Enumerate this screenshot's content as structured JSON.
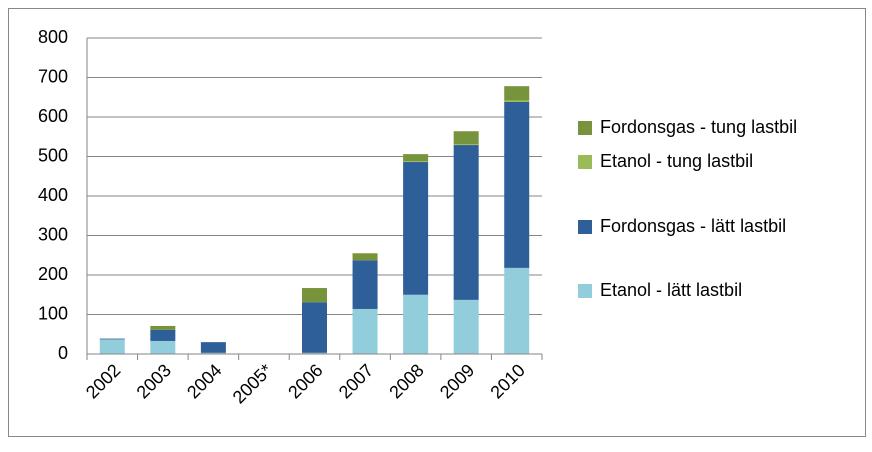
{
  "chart_data": {
    "type": "stacked_bar",
    "categories": [
      "2002",
      "2003",
      "2004",
      "2005*",
      "2006",
      "2007",
      "2008",
      "2009",
      "2010"
    ],
    "series": [
      {
        "name": "Etanol - lätt lastbil",
        "color": "#92cddc",
        "values": [
          37,
          33,
          3,
          0,
          3,
          114,
          150,
          137,
          218
        ]
      },
      {
        "name": "Fordonsgas - lätt lastbil",
        "color": "#2e5f99",
        "values": [
          2,
          28,
          27,
          0,
          128,
          123,
          336,
          392,
          420
        ]
      },
      {
        "name": "Etanol - tung lastbil",
        "color": "#9bbb59",
        "values": [
          0,
          0,
          0,
          0,
          0,
          0,
          2,
          2,
          4
        ]
      },
      {
        "name": "Fordonsgas - tung lastbil",
        "color": "#77933c",
        "values": [
          0,
          10,
          0,
          0,
          36,
          18,
          18,
          33,
          36
        ]
      }
    ],
    "ylim": [
      0,
      800
    ],
    "yticks": [
      0,
      100,
      200,
      300,
      400,
      500,
      600,
      700,
      800
    ],
    "grid": true,
    "legend": "right"
  }
}
